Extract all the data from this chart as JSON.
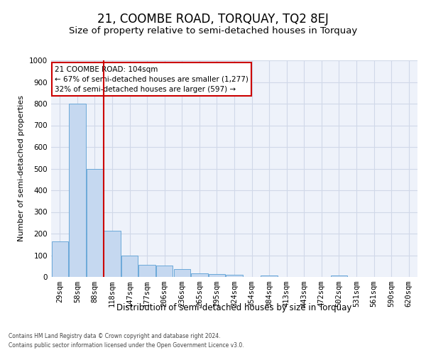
{
  "title": "21, COOMBE ROAD, TORQUAY, TQ2 8EJ",
  "subtitle": "Size of property relative to semi-detached houses in Torquay",
  "xlabel": "Distribution of semi-detached houses by size in Torquay",
  "ylabel": "Number of semi-detached properties",
  "footer_line1": "Contains HM Land Registry data © Crown copyright and database right 2024.",
  "footer_line2": "Contains public sector information licensed under the Open Government Licence v3.0.",
  "annotation_line1": "21 COOMBE ROAD: 104sqm",
  "annotation_line2": "← 67% of semi-detached houses are smaller (1,277)",
  "annotation_line3": "32% of semi-detached houses are larger (597) →",
  "categories": [
    "29sqm",
    "58sqm",
    "88sqm",
    "118sqm",
    "147sqm",
    "177sqm",
    "206sqm",
    "236sqm",
    "265sqm",
    "295sqm",
    "324sqm",
    "354sqm",
    "384sqm",
    "413sqm",
    "443sqm",
    "472sqm",
    "502sqm",
    "531sqm",
    "561sqm",
    "590sqm",
    "620sqm"
  ],
  "values": [
    165,
    800,
    500,
    213,
    100,
    55,
    53,
    35,
    18,
    13,
    10,
    0,
    8,
    0,
    0,
    0,
    8,
    0,
    0,
    0,
    0
  ],
  "bar_color": "#c5d8f0",
  "bar_edge_color": "#5a9fd4",
  "vline_color": "#cc0000",
  "vline_x_index": 2.5,
  "ylim": [
    0,
    1000
  ],
  "yticks": [
    0,
    100,
    200,
    300,
    400,
    500,
    600,
    700,
    800,
    900,
    1000
  ],
  "grid_color": "#d0d8e8",
  "background_color": "#eef2fa",
  "title_fontsize": 12,
  "subtitle_fontsize": 9.5,
  "ylabel_fontsize": 8,
  "xlabel_fontsize": 8.5,
  "tick_fontsize": 7.5,
  "annotation_fontsize": 7.5,
  "footer_fontsize": 5.5
}
